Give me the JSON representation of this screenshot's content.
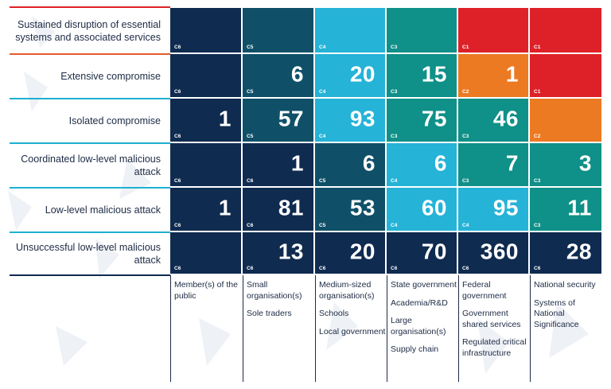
{
  "chart_data": {
    "type": "heatmap",
    "rows": [
      "Sustained disruption of essential systems and associated services",
      "Extensive compromise",
      "Isolated compromise",
      "Coordinated low-level malicious attack",
      "Low-level malicious attack",
      "Unsuccessful low-level malicious attack"
    ],
    "columns": [
      [
        "Member(s) of the public"
      ],
      [
        "Small organisation(s)",
        "Sole traders"
      ],
      [
        "Medium-sized organisation(s)",
        "Schools",
        "Local government"
      ],
      [
        "State government",
        "Academia/R&D",
        "Large organisation(s)",
        "Supply chain"
      ],
      [
        "Federal government",
        "Government shared services",
        "Regulated critical infrastructure"
      ],
      [
        "National security",
        "Systems of National Significance"
      ]
    ],
    "codes": [
      [
        "C6",
        "C5",
        "C4",
        "C3",
        "C1",
        "C1"
      ],
      [
        "C6",
        "C5",
        "C4",
        "C3",
        "C2",
        "C1"
      ],
      [
        "C6",
        "C5",
        "C4",
        "C3",
        "C3",
        "C2"
      ],
      [
        "C6",
        "C6",
        "C5",
        "C4",
        "C3",
        "C3"
      ],
      [
        "C6",
        "C6",
        "C5",
        "C4",
        "C4",
        "C3"
      ],
      [
        "C6",
        "C6",
        "C6",
        "C6",
        "C6",
        "C6"
      ]
    ],
    "values": [
      [
        null,
        null,
        null,
        null,
        null,
        null
      ],
      [
        null,
        6,
        20,
        15,
        1,
        null
      ],
      [
        1,
        57,
        93,
        75,
        46,
        null
      ],
      [
        null,
        1,
        6,
        6,
        7,
        3
      ],
      [
        1,
        81,
        53,
        60,
        95,
        11
      ],
      [
        null,
        13,
        20,
        70,
        360,
        28
      ]
    ]
  },
  "colors": {
    "C1": "#de2128",
    "C2": "#ec7a23",
    "C3": "#0f9088",
    "C4": "#25b3d7",
    "C5": "#0f5068",
    "C6": "#0f2b50",
    "row_lines": [
      "#e25b2e",
      "#1fb0d1",
      "#1fb0d1",
      "#1fb0d1",
      "#1fb0d1",
      "#0f2b50"
    ]
  }
}
